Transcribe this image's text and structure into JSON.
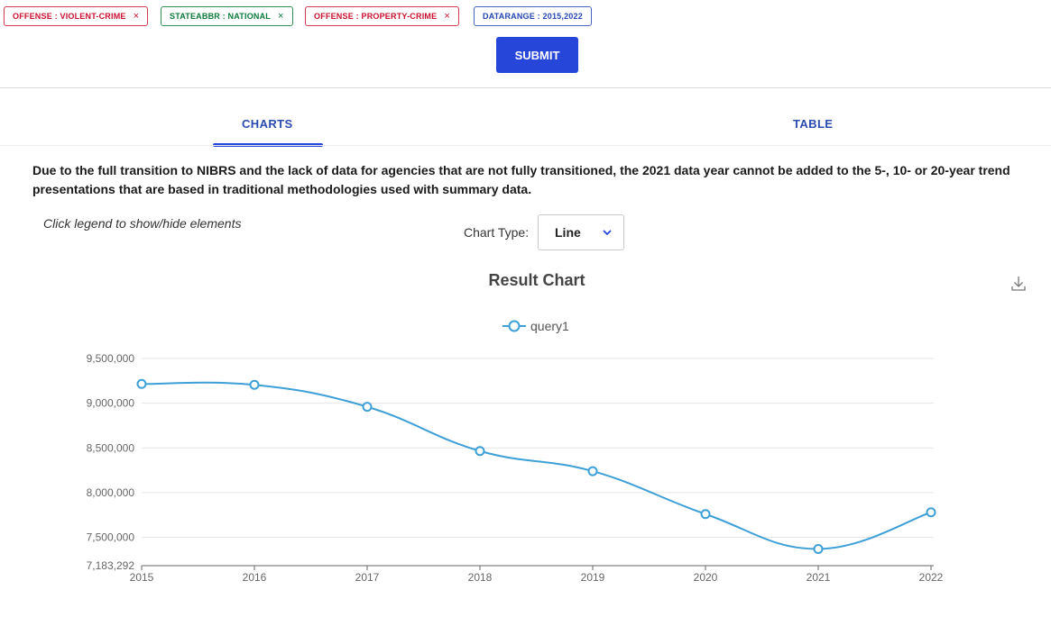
{
  "filters": [
    {
      "label": "OFFENSE : VIOLENT-CRIME",
      "remove": "×",
      "color": "#c8102e"
    },
    {
      "label": "STATEABBR : NATIONAL",
      "remove": "×",
      "color": "#0b7a3b"
    },
    {
      "label": "OFFENSE : PROPERTY-CRIME",
      "remove": "×",
      "color": "#c8102e"
    },
    {
      "label": "DATARANGE : 2015,2022",
      "color": "#2647b3"
    }
  ],
  "submit_label": "SUBMIT",
  "tabs": {
    "charts": "CHARTS",
    "table": "TABLE",
    "active": "charts"
  },
  "notice": "Due to the full transition to NIBRS and the lack of data for agencies that are not fully transitioned, the 2021 data year cannot be added to the 5-, 10- or 20-year trend presentations that are based in traditional methodologies used with summary data.",
  "legend_hint": "Click legend to show/hide elements",
  "chart_type": {
    "label": "Chart Type:",
    "selected": "Line"
  },
  "icons": {
    "download": "download-icon",
    "dropdown": "chevron-down-icon"
  },
  "accent_color": "#2546d8",
  "chart_data": {
    "type": "line",
    "title": "Result Chart",
    "x": [
      "2015",
      "2016",
      "2017",
      "2018",
      "2019",
      "2020",
      "2021",
      "2022"
    ],
    "series": [
      {
        "name": "query1",
        "color": "#3ea0d6",
        "values": [
          9215000,
          9205000,
          8960000,
          8465000,
          8240000,
          7760000,
          7370000,
          7780000
        ]
      }
    ],
    "ylim": [
      7183292,
      9500000
    ],
    "yticks": [
      "7,183,292",
      "7,500,000",
      "8,000,000",
      "8,500,000",
      "9,000,000",
      "9,500,000"
    ],
    "ytick_values": [
      7183292,
      7500000,
      8000000,
      8500000,
      9000000,
      9500000
    ],
    "grid": true,
    "legend_position": "top-center"
  }
}
